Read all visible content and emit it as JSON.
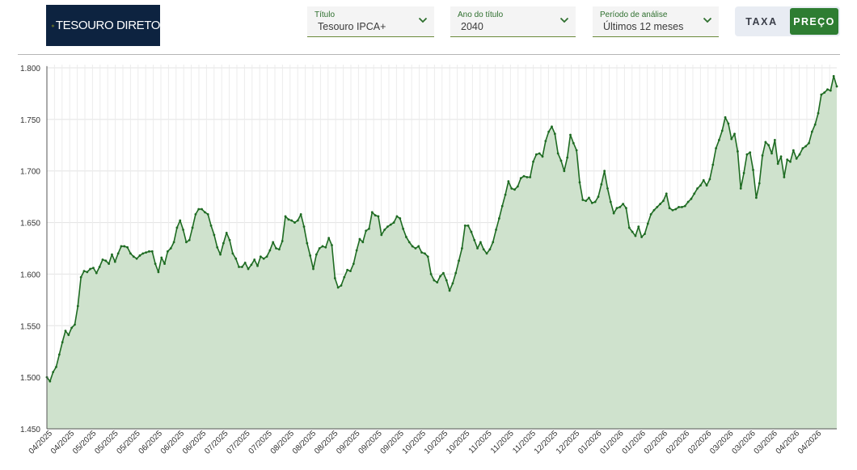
{
  "logo": {
    "brand": "Tesouro Direto",
    "text_main": "TESOURO",
    "text_second": "DIRETO"
  },
  "filters": [
    {
      "label": "Título",
      "value": "Tesouro IPCA+",
      "icon": "chevron-down-icon"
    },
    {
      "label": "Ano do título",
      "value": "2040",
      "icon": "chevron-down-icon"
    },
    {
      "label": "Período de análise",
      "value": "Últimos 12 meses",
      "icon": "chevron-down-icon"
    }
  ],
  "toggle": {
    "taxa": "TAXA",
    "preco": "PREÇO",
    "selected": "PREÇO"
  },
  "colors": {
    "line": "#1e6b22",
    "fill": "#cfe2cd",
    "accent": "#2e7d32",
    "grid": "#e3e3e3"
  },
  "chart_data": {
    "type": "area",
    "title": "",
    "xlabel": "",
    "ylabel": "",
    "ylim": [
      1450,
      1800
    ],
    "y_ticks": [
      "1.450",
      "1.500",
      "1.550",
      "1.600",
      "1.650",
      "1.700",
      "1.750",
      "1.800"
    ],
    "x_tick_labels": [
      "04/2025",
      "04/2025",
      "05/2025",
      "05/2025",
      "05/2025",
      "06/2025",
      "06/2025",
      "06/2025",
      "07/2025",
      "07/2025",
      "07/2025",
      "08/2025",
      "08/2025",
      "08/2025",
      "09/2025",
      "09/2025",
      "09/2025",
      "10/2025",
      "10/2025",
      "10/2025",
      "11/2025",
      "11/2025",
      "11/2025",
      "12/2025",
      "12/2025",
      "01/2026",
      "01/2026",
      "01/2026",
      "02/2026",
      "02/2026",
      "02/2026",
      "03/2026",
      "03/2026",
      "03/2026",
      "04/2026",
      "04/2026"
    ],
    "grid": true,
    "legend": "none",
    "series": [
      {
        "values": [
          1500,
          1496,
          1505,
          1510,
          1522,
          1534,
          1545,
          1541,
          1548,
          1551,
          1569,
          1597,
          1603,
          1602,
          1605,
          1606,
          1601,
          1607,
          1614,
          1613,
          1610,
          1619,
          1612,
          1620,
          1627,
          1627,
          1626,
          1620,
          1617,
          1615,
          1618,
          1620,
          1621,
          1622,
          1622,
          1610,
          1602,
          1616,
          1610,
          1622,
          1625,
          1631,
          1645,
          1652,
          1643,
          1631,
          1633,
          1645,
          1658,
          1663,
          1663,
          1660,
          1658,
          1647,
          1638,
          1626,
          1619,
          1630,
          1640,
          1633,
          1620,
          1615,
          1607,
          1607,
          1611,
          1605,
          1609,
          1614,
          1608,
          1617,
          1615,
          1617,
          1623,
          1631,
          1625,
          1624,
          1632,
          1656,
          1653,
          1652,
          1650,
          1652,
          1658,
          1646,
          1630,
          1618,
          1605,
          1619,
          1625,
          1627,
          1626,
          1635,
          1628,
          1596,
          1587,
          1589,
          1597,
          1604,
          1603,
          1610,
          1623,
          1634,
          1631,
          1642,
          1644,
          1660,
          1657,
          1656,
          1638,
          1643,
          1646,
          1648,
          1650,
          1656,
          1654,
          1644,
          1636,
          1631,
          1627,
          1625,
          1627,
          1621,
          1620,
          1617,
          1600,
          1594,
          1592,
          1598,
          1601,
          1594,
          1584,
          1591,
          1601,
          1613,
          1625,
          1647,
          1647,
          1641,
          1633,
          1625,
          1631,
          1624,
          1620,
          1624,
          1631,
          1643,
          1654,
          1666,
          1677,
          1690,
          1683,
          1682,
          1685,
          1693,
          1695,
          1694,
          1694,
          1709,
          1716,
          1717,
          1714,
          1729,
          1738,
          1743,
          1736,
          1717,
          1710,
          1700,
          1713,
          1735,
          1727,
          1720,
          1689,
          1672,
          1671,
          1674,
          1669,
          1670,
          1675,
          1687,
          1700,
          1683,
          1670,
          1659,
          1664,
          1665,
          1668,
          1664,
          1645,
          1641,
          1637,
          1646,
          1636,
          1639,
          1649,
          1658,
          1662,
          1665,
          1668,
          1671,
          1678,
          1664,
          1662,
          1663,
          1665,
          1665,
          1666,
          1670,
          1673,
          1678,
          1683,
          1686,
          1691,
          1686,
          1692,
          1706,
          1722,
          1730,
          1739,
          1752,
          1746,
          1731,
          1736,
          1719,
          1683,
          1698,
          1716,
          1718,
          1701,
          1674,
          1688,
          1715,
          1728,
          1725,
          1717,
          1730,
          1707,
          1714,
          1694,
          1711,
          1709,
          1720,
          1712,
          1716,
          1722,
          1724,
          1727,
          1738,
          1745,
          1756,
          1774,
          1776,
          1779,
          1778,
          1792,
          1782
        ]
      }
    ]
  }
}
